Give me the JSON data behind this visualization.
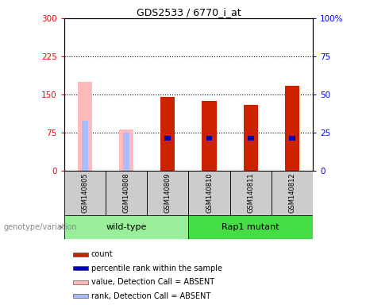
{
  "title": "GDS2533 / 6770_i_at",
  "samples": [
    "GSM140805",
    "GSM140808",
    "GSM140809",
    "GSM140810",
    "GSM140811",
    "GSM140812"
  ],
  "count_values": [
    0,
    0,
    145,
    138,
    130,
    168
  ],
  "rank_values_pct": [
    0,
    0,
    27,
    28,
    25,
    28
  ],
  "absent_value_values": [
    175,
    82,
    0,
    0,
    0,
    0
  ],
  "absent_rank_pct": [
    33,
    25,
    0,
    0,
    0,
    0
  ],
  "ylim_left": [
    0,
    300
  ],
  "ylim_right": [
    0,
    100
  ],
  "yticks_left": [
    0,
    75,
    150,
    225,
    300
  ],
  "yticks_right": [
    0,
    25,
    50,
    75,
    100
  ],
  "ytick_labels_left": [
    "0",
    "75",
    "150",
    "225",
    "300"
  ],
  "ytick_labels_right": [
    "0",
    "25",
    "50",
    "75",
    "100%"
  ],
  "bar_color_red": "#cc2200",
  "bar_color_blue": "#0000bb",
  "bar_color_pink": "#ffbbbb",
  "bar_color_light_blue": "#aabbff",
  "legend_items": [
    "count",
    "percentile rank within the sample",
    "value, Detection Call = ABSENT",
    "rank, Detection Call = ABSENT"
  ],
  "legend_colors": [
    "#cc2200",
    "#0000bb",
    "#ffbbbb",
    "#aabbff"
  ],
  "genotype_label": "genotype/variation",
  "wt_color": "#99ee99",
  "rap_color": "#44dd44",
  "bar_width": 0.35,
  "blue_bar_width": 0.15
}
